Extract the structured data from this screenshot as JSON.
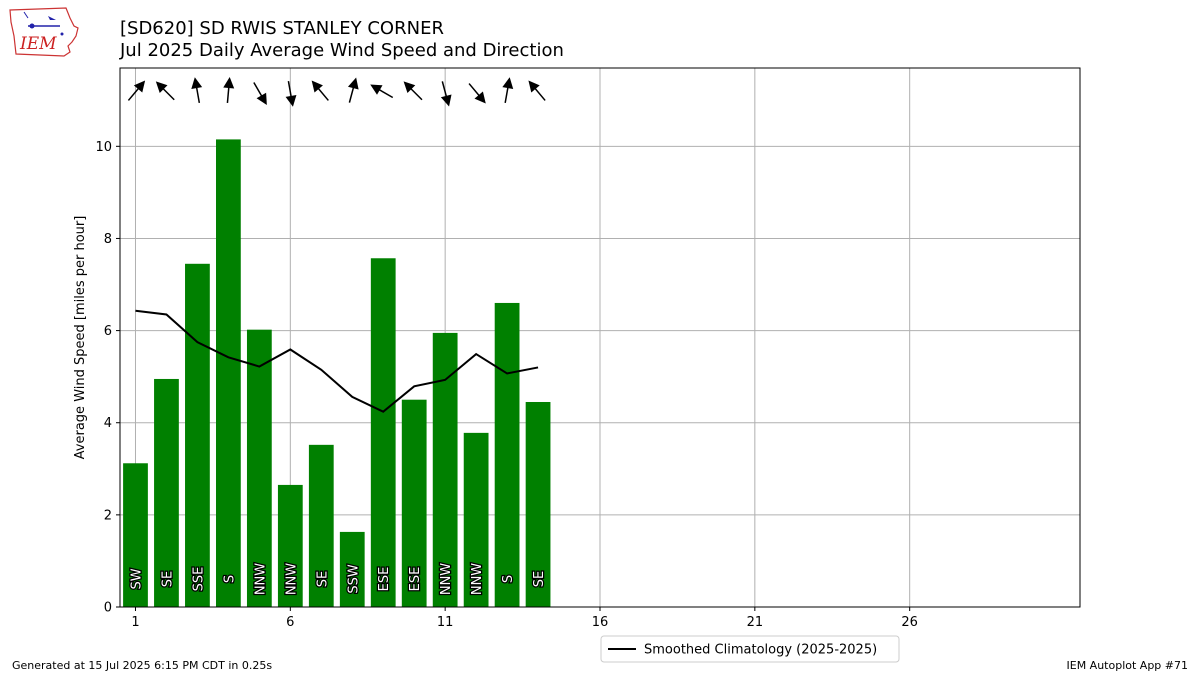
{
  "header": {
    "title_line1": "[SD620] SD RWIS STANLEY CORNER",
    "title_line2": "Jul 2025 Daily Average Wind Speed and Direction",
    "logo_text": "IEM"
  },
  "footer": {
    "left": "Generated at 15 Jul 2025 6:15 PM CDT in 0.25s",
    "right": "IEM Autoplot App #71"
  },
  "colors": {
    "bar": "#008000",
    "climo_line": "#000000",
    "grid": "#b0b0b0"
  },
  "chart_data": {
    "type": "bar",
    "title": "[SD620] SD RWIS STANLEY CORNER\nJul 2025 Daily Average Wind Speed and Direction",
    "xlabel": "",
    "ylabel": "Average Wind Speed [miles per hour]",
    "xlim": [
      0.5,
      31.5
    ],
    "ylim": [
      0,
      11.7
    ],
    "xticks": [
      1,
      6,
      11,
      16,
      21,
      26
    ],
    "yticks": [
      0,
      2,
      4,
      6,
      8,
      10
    ],
    "grid": true,
    "legend": {
      "position": "bottom-center",
      "entries": [
        "Smoothed Climatology (2025-2025)"
      ]
    },
    "days": [
      1,
      2,
      3,
      4,
      5,
      6,
      7,
      8,
      9,
      10,
      11,
      12,
      13,
      14
    ],
    "series": [
      {
        "name": "Average Wind Speed",
        "kind": "bar",
        "values": [
          3.12,
          4.95,
          7.45,
          10.15,
          6.02,
          2.65,
          3.52,
          1.63,
          7.57,
          4.5,
          5.95,
          3.78,
          6.6,
          4.45
        ],
        "direction_labels": [
          "SW",
          "SE",
          "SSE",
          "S",
          "NNW",
          "NNW",
          "SE",
          "SSW",
          "ESE",
          "ESE",
          "NNW",
          "NNW",
          "S",
          "SE"
        ],
        "direction_arrows_deg_toward": [
          40,
          315,
          350,
          5,
          150,
          170,
          320,
          15,
          300,
          315,
          165,
          140,
          10,
          320
        ]
      },
      {
        "name": "Smoothed Climatology (2025-2025)",
        "kind": "line",
        "values": [
          6.43,
          6.35,
          5.75,
          5.42,
          5.22,
          5.59,
          5.15,
          4.56,
          4.24,
          4.79,
          4.93,
          5.49,
          5.07,
          5.2
        ]
      }
    ]
  }
}
